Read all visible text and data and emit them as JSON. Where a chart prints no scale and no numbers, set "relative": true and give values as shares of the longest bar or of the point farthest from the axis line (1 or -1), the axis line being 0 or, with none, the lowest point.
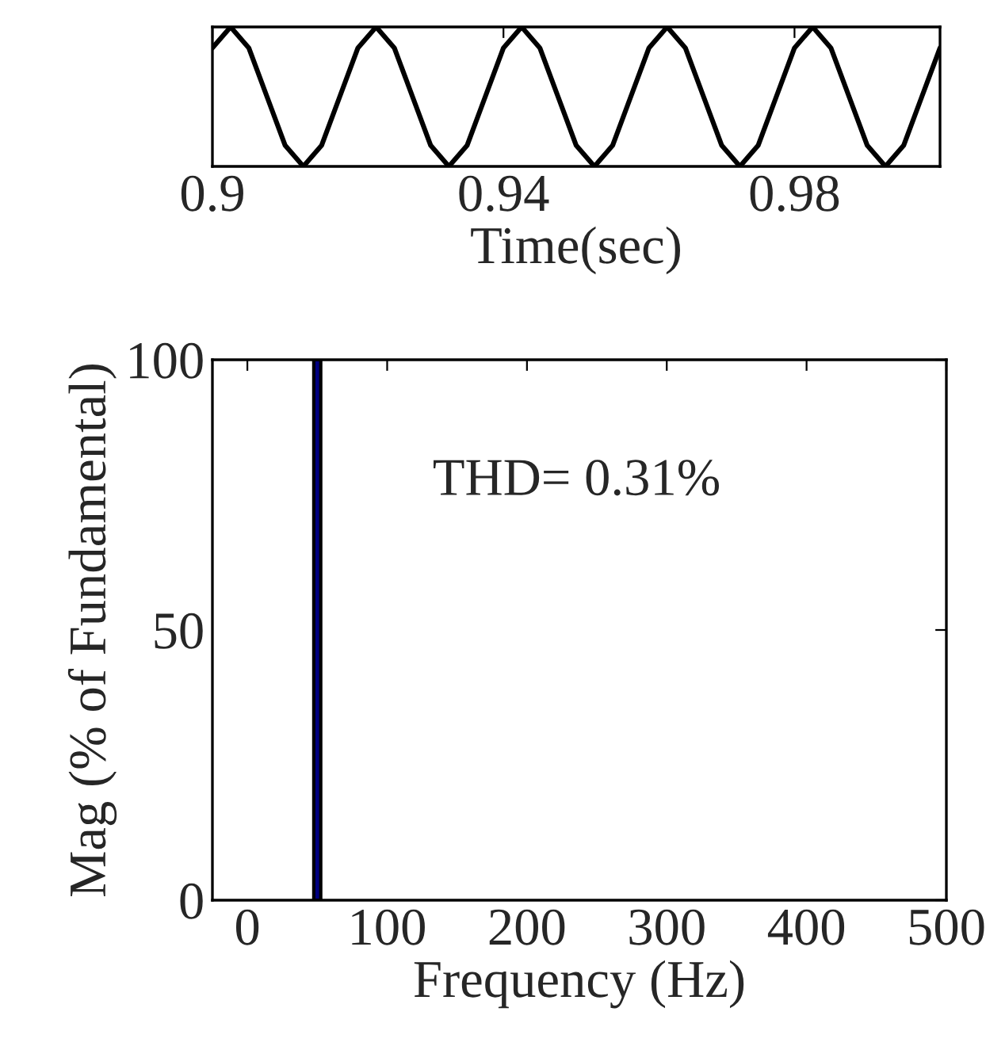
{
  "chart_data": [
    {
      "type": "line",
      "relative": true,
      "xlabel": "Time(sec)",
      "xlim": [
        0.9,
        1.0
      ],
      "xticks": [
        0.9,
        0.94,
        0.98
      ],
      "tick_labels": "x",
      "series": [
        {
          "color": "#000000",
          "x": [
            0.9,
            0.9025,
            0.905,
            0.9075,
            0.91,
            0.9125,
            0.915,
            0.9175,
            0.92,
            0.9225,
            0.925,
            0.9275,
            0.93,
            0.9325,
            0.935,
            0.9375,
            0.94,
            0.9425,
            0.945,
            0.9475,
            0.95,
            0.9525,
            0.955,
            0.9575,
            0.96,
            0.9625,
            0.965,
            0.9675,
            0.97,
            0.9725,
            0.975,
            0.9775,
            0.98,
            0.9825,
            0.985,
            0.9875,
            0.99,
            0.9925,
            0.995,
            0.9975,
            1.0
          ],
          "values": [
            0.85,
            1,
            0.85,
            0.5,
            0.15,
            0,
            0.15,
            0.5,
            0.85,
            1,
            0.85,
            0.5,
            0.15,
            0,
            0.15,
            0.5,
            0.85,
            1,
            0.85,
            0.5,
            0.15,
            0,
            0.15,
            0.5,
            0.85,
            1,
            0.85,
            0.5,
            0.15,
            0,
            0.15,
            0.5,
            0.85,
            1,
            0.85,
            0.5,
            0.15,
            0,
            0.15,
            0.5,
            0.85
          ]
        }
      ]
    },
    {
      "type": "bar",
      "x": [
        50
      ],
      "values": [
        100
      ],
      "color": "#000080",
      "xlabel": "Frequency (Hz)",
      "ylabel": "Mag (% of Fundamental)",
      "xlim": [
        -25,
        500
      ],
      "xticks": [
        0,
        100,
        200,
        300,
        400,
        500
      ],
      "ylim": [
        0,
        100
      ],
      "yticks": [
        0,
        50,
        100
      ],
      "annotations": [
        "THD= 0.31%"
      ]
    }
  ]
}
